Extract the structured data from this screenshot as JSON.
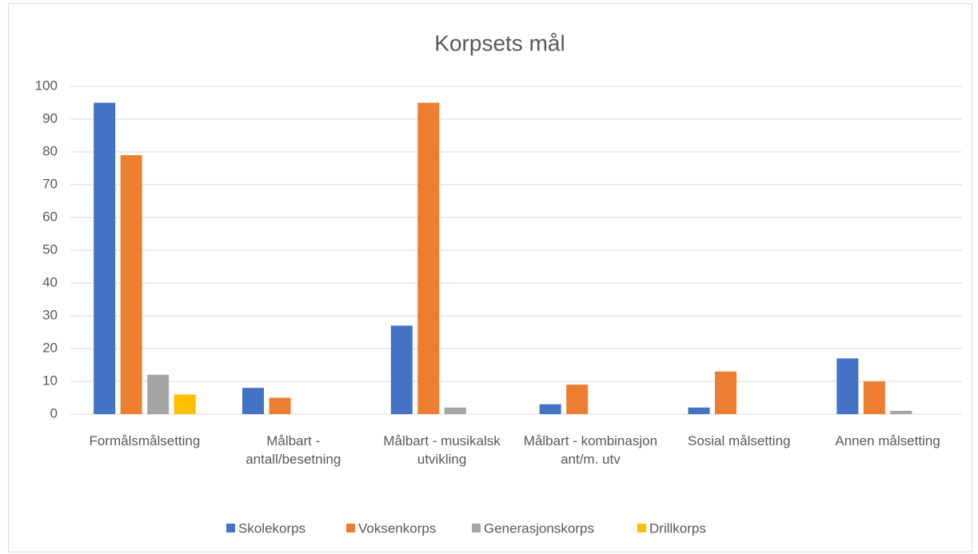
{
  "chart_data": {
    "type": "bar",
    "title": "Korpsets mål",
    "categories": [
      "Formålsmålsetting",
      "Målbart - antall/besetning",
      "Målbart - musikalsk utvikling",
      "Målbart - kombinasjon ant/m. utv",
      "Sosial målsetting",
      "Annen målsetting"
    ],
    "series": [
      {
        "name": "Skolekorps",
        "color": "#4472c4",
        "values": [
          95,
          8,
          27,
          3,
          2,
          17
        ]
      },
      {
        "name": "Voksenkorps",
        "color": "#ed7d31",
        "values": [
          79,
          5,
          95,
          9,
          13,
          10
        ]
      },
      {
        "name": "Generasjonskorps",
        "color": "#a5a5a5",
        "values": [
          12,
          0,
          2,
          0,
          0,
          1
        ]
      },
      {
        "name": "Drillkorps",
        "color": "#ffc000",
        "values": [
          6,
          0,
          0,
          0,
          0,
          0
        ]
      }
    ],
    "ylim": [
      0,
      100
    ],
    "yticks": [
      0,
      10,
      20,
      30,
      40,
      50,
      60,
      70,
      80,
      90,
      100
    ],
    "grid": true,
    "legend": "bottom"
  }
}
